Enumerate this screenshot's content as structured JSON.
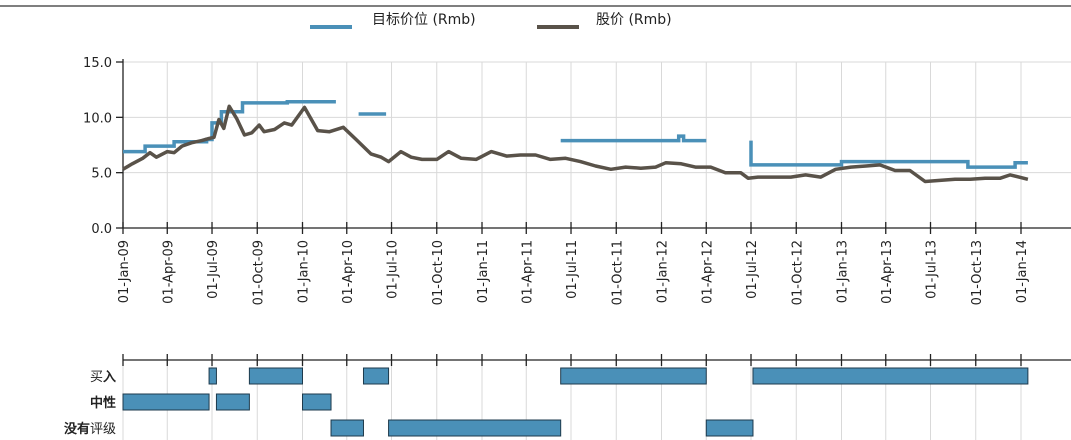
{
  "chart_data": {
    "type": "line",
    "legend": {
      "placement": "top-center",
      "entries": [
        {
          "series": "target",
          "label": "目标价位 (Rmb)",
          "color": "#4a90b8"
        },
        {
          "series": "price",
          "label": "股价 (Rmb)",
          "color": "#595249"
        }
      ]
    },
    "x_axis": {
      "start": "2009-01-01",
      "end": "2014-01-15",
      "tick_labels": [
        "01-Jan-09",
        "01-Apr-09",
        "01-Jul-09",
        "01-Oct-09",
        "01-Jan-10",
        "01-Apr-10",
        "01-Jul-10",
        "01-Oct-10",
        "01-Jan-11",
        "01-Apr-11",
        "01-Jul-11",
        "01-Oct-11",
        "01-Jan-12",
        "01-Apr-12",
        "01-Jul-12",
        "01-Oct-12",
        "01-Jan-13",
        "01-Apr-13",
        "01-Jul-13",
        "01-Oct-13",
        "01-Jan-14"
      ],
      "tick_dates": [
        "2009-01-01",
        "2009-04-01",
        "2009-07-01",
        "2009-10-01",
        "2010-01-01",
        "2010-04-01",
        "2010-07-01",
        "2010-10-01",
        "2011-01-01",
        "2011-04-01",
        "2011-07-01",
        "2011-10-01",
        "2012-01-01",
        "2012-04-01",
        "2012-07-01",
        "2012-10-01",
        "2013-01-01",
        "2013-04-01",
        "2013-07-01",
        "2013-10-01",
        "2014-01-01"
      ]
    },
    "y_axis": {
      "ylim": [
        0,
        15
      ],
      "ticks": [
        0,
        5,
        10,
        15
      ],
      "tick_labels": [
        "0.0",
        "5.0",
        "10.0",
        "15.0"
      ],
      "grid": true
    },
    "series": [
      {
        "key": "target",
        "name": "目标价位 (Rmb)",
        "color": "#4a90b8",
        "segments": [
          [
            [
              "2009-01-01",
              6.9
            ],
            [
              "2009-02-15",
              6.9
            ],
            [
              "2009-02-15",
              7.4
            ],
            [
              "2009-04-15",
              7.4
            ],
            [
              "2009-04-15",
              7.8
            ],
            [
              "2009-06-20",
              7.8
            ],
            [
              "2009-06-20",
              8.0
            ],
            [
              "2009-07-01",
              8.0
            ],
            [
              "2009-07-01",
              9.5
            ],
            [
              "2009-07-20",
              9.5
            ],
            [
              "2009-07-20",
              10.5
            ],
            [
              "2009-09-01",
              10.5
            ],
            [
              "2009-09-01",
              11.3
            ],
            [
              "2009-12-01",
              11.3
            ],
            [
              "2009-12-01",
              11.4
            ],
            [
              "2010-03-10",
              11.4
            ]
          ],
          [
            [
              "2010-04-25",
              10.3
            ],
            [
              "2010-06-20",
              10.3
            ]
          ],
          [
            [
              "2011-06-10",
              7.9
            ],
            [
              "2012-02-05",
              7.9
            ],
            [
              "2012-02-05",
              8.3
            ],
            [
              "2012-02-15",
              8.3
            ],
            [
              "2012-02-15",
              7.9
            ],
            [
              "2012-04-01",
              7.9
            ]
          ],
          [
            [
              "2012-07-01",
              7.9
            ],
            [
              "2012-07-01",
              5.7
            ],
            [
              "2013-01-01",
              5.7
            ],
            [
              "2013-01-01",
              6.0
            ],
            [
              "2013-09-15",
              6.0
            ],
            [
              "2013-09-15",
              5.5
            ],
            [
              "2013-12-20",
              5.5
            ],
            [
              "2013-12-20",
              5.9
            ],
            [
              "2014-01-15",
              5.9
            ]
          ]
        ]
      },
      {
        "key": "price",
        "name": "股价 (Rmb)",
        "color": "#595249",
        "points": [
          [
            "2009-01-01",
            5.3
          ],
          [
            "2009-01-20",
            5.8
          ],
          [
            "2009-02-10",
            6.3
          ],
          [
            "2009-02-25",
            6.8
          ],
          [
            "2009-03-10",
            6.4
          ],
          [
            "2009-04-01",
            6.9
          ],
          [
            "2009-04-15",
            6.8
          ],
          [
            "2009-05-01",
            7.4
          ],
          [
            "2009-05-20",
            7.7
          ],
          [
            "2009-06-10",
            7.9
          ],
          [
            "2009-06-25",
            8.1
          ],
          [
            "2009-07-05",
            8.2
          ],
          [
            "2009-07-15",
            9.8
          ],
          [
            "2009-07-25",
            9.0
          ],
          [
            "2009-08-05",
            11.0
          ],
          [
            "2009-08-20",
            9.9
          ],
          [
            "2009-09-05",
            8.4
          ],
          [
            "2009-09-20",
            8.6
          ],
          [
            "2009-10-05",
            9.3
          ],
          [
            "2009-10-15",
            8.7
          ],
          [
            "2009-11-05",
            8.9
          ],
          [
            "2009-11-25",
            9.5
          ],
          [
            "2009-12-10",
            9.3
          ],
          [
            "2010-01-05",
            10.9
          ],
          [
            "2010-02-01",
            8.8
          ],
          [
            "2010-02-25",
            8.7
          ],
          [
            "2010-03-25",
            9.1
          ],
          [
            "2010-04-20",
            8.0
          ],
          [
            "2010-05-20",
            6.7
          ],
          [
            "2010-06-10",
            6.4
          ],
          [
            "2010-06-25",
            6.0
          ],
          [
            "2010-07-20",
            6.9
          ],
          [
            "2010-08-10",
            6.4
          ],
          [
            "2010-09-01",
            6.2
          ],
          [
            "2010-10-01",
            6.2
          ],
          [
            "2010-10-25",
            6.9
          ],
          [
            "2010-11-20",
            6.3
          ],
          [
            "2010-12-20",
            6.2
          ],
          [
            "2011-01-20",
            6.9
          ],
          [
            "2011-02-20",
            6.5
          ],
          [
            "2011-03-20",
            6.6
          ],
          [
            "2011-04-20",
            6.6
          ],
          [
            "2011-05-20",
            6.2
          ],
          [
            "2011-06-20",
            6.3
          ],
          [
            "2011-07-20",
            6.0
          ],
          [
            "2011-08-20",
            5.6
          ],
          [
            "2011-09-20",
            5.3
          ],
          [
            "2011-10-20",
            5.5
          ],
          [
            "2011-11-20",
            5.4
          ],
          [
            "2011-12-20",
            5.5
          ],
          [
            "2012-01-10",
            5.9
          ],
          [
            "2012-02-10",
            5.8
          ],
          [
            "2012-03-10",
            5.5
          ],
          [
            "2012-04-10",
            5.5
          ],
          [
            "2012-05-10",
            5.0
          ],
          [
            "2012-06-10",
            5.0
          ],
          [
            "2012-06-25",
            4.5
          ],
          [
            "2012-07-15",
            4.6
          ],
          [
            "2012-08-20",
            4.6
          ],
          [
            "2012-09-20",
            4.6
          ],
          [
            "2012-10-20",
            4.8
          ],
          [
            "2012-11-20",
            4.6
          ],
          [
            "2012-12-20",
            5.3
          ],
          [
            "2013-01-20",
            5.5
          ],
          [
            "2013-02-20",
            5.6
          ],
          [
            "2013-03-20",
            5.7
          ],
          [
            "2013-04-20",
            5.2
          ],
          [
            "2013-05-20",
            5.2
          ],
          [
            "2013-06-20",
            4.2
          ],
          [
            "2013-07-20",
            4.3
          ],
          [
            "2013-08-20",
            4.4
          ],
          [
            "2013-09-20",
            4.4
          ],
          [
            "2013-10-20",
            4.5
          ],
          [
            "2013-11-20",
            4.5
          ],
          [
            "2013-12-10",
            4.8
          ],
          [
            "2014-01-15",
            4.4
          ]
        ]
      }
    ],
    "ratings": {
      "rows": [
        {
          "key": "buy",
          "label_bold": "入",
          "label_light": "买",
          "label_order": "light-first"
        },
        {
          "key": "neutral",
          "label_bold": "中性",
          "label_light": "",
          "label_order": "bold-first"
        },
        {
          "key": "not_rated",
          "label_bold": "没有",
          "label_light": "评级",
          "label_order": "bold-first"
        }
      ],
      "bar_color": "#4a90b8",
      "bars": [
        {
          "row": "buy",
          "start": "2009-06-25",
          "end": "2009-07-10"
        },
        {
          "row": "buy",
          "start": "2009-09-15",
          "end": "2010-01-01"
        },
        {
          "row": "buy",
          "start": "2010-05-05",
          "end": "2010-06-25"
        },
        {
          "row": "buy",
          "start": "2011-06-10",
          "end": "2012-04-01"
        },
        {
          "row": "buy",
          "start": "2012-07-05",
          "end": "2014-01-15"
        },
        {
          "row": "neutral",
          "start": "2009-01-01",
          "end": "2009-06-25"
        },
        {
          "row": "neutral",
          "start": "2009-07-10",
          "end": "2009-09-15"
        },
        {
          "row": "neutral",
          "start": "2010-01-01",
          "end": "2010-02-28"
        },
        {
          "row": "not_rated",
          "start": "2010-02-28",
          "end": "2010-05-05"
        },
        {
          "row": "not_rated",
          "start": "2010-06-25",
          "end": "2011-06-10"
        },
        {
          "row": "not_rated",
          "start": "2012-04-01",
          "end": "2012-07-05"
        }
      ]
    }
  }
}
